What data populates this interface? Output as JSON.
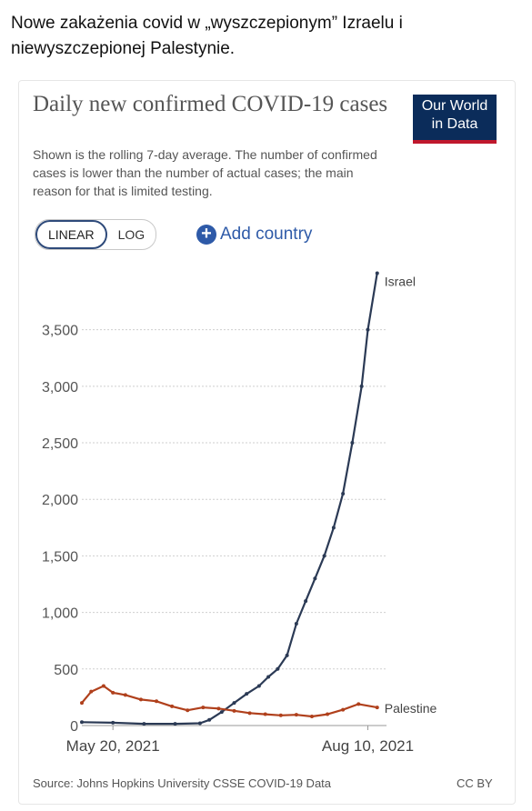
{
  "post": {
    "caption": "Nowe zakażenia covid w „wyszczepionym” Izraelu i niewyszczepionej Palestynie."
  },
  "card": {
    "title": "Daily new confirmed COVID-19 cases",
    "subtitle": "Shown is the rolling 7-day average. The number of confirmed cases is lower than the number of actual cases; the main reason for that is limited testing.",
    "logo_line1": "Our World",
    "logo_line2": "in Data",
    "scale_linear": "LINEAR",
    "scale_log": "LOG",
    "scale_active": "LINEAR",
    "add_country_label": "Add country",
    "source": "Source: Johns Hopkins University CSSE COVID-19 Data",
    "license": "CC BY"
  },
  "colors": {
    "logo_bg": "#0b2c5a",
    "logo_accent": "#c0182d",
    "israel": "#2b3a55",
    "palestine": "#b0401c",
    "link": "#2e5aa8"
  },
  "chart_data": {
    "type": "line",
    "title": "Daily new confirmed COVID-19 cases",
    "xlabel": "",
    "ylabel": "",
    "x_ticks": [
      "May 20, 2021",
      "Aug 10, 2021"
    ],
    "y_ticks": [
      "0",
      "500",
      "1,000",
      "1,500",
      "2,000",
      "2,500",
      "3,000",
      "3,500"
    ],
    "ylim": [
      0,
      4100
    ],
    "x_range": [
      "2021-05-10",
      "2021-08-16"
    ],
    "grid": "horizontal dotted",
    "series": [
      {
        "name": "Israel",
        "points": [
          [
            "2021-05-10",
            30
          ],
          [
            "2021-05-20",
            25
          ],
          [
            "2021-05-30",
            15
          ],
          [
            "2021-06-09",
            15
          ],
          [
            "2021-06-17",
            20
          ],
          [
            "2021-06-20",
            50
          ],
          [
            "2021-06-24",
            120
          ],
          [
            "2021-06-28",
            200
          ],
          [
            "2021-07-02",
            280
          ],
          [
            "2021-07-06",
            350
          ],
          [
            "2021-07-09",
            430
          ],
          [
            "2021-07-12",
            500
          ],
          [
            "2021-07-15",
            620
          ],
          [
            "2021-07-18",
            900
          ],
          [
            "2021-07-21",
            1100
          ],
          [
            "2021-07-24",
            1300
          ],
          [
            "2021-07-27",
            1500
          ],
          [
            "2021-07-30",
            1750
          ],
          [
            "2021-08-02",
            2050
          ],
          [
            "2021-08-05",
            2500
          ],
          [
            "2021-08-08",
            3000
          ],
          [
            "2021-08-10",
            3500
          ],
          [
            "2021-08-13",
            4000
          ]
        ]
      },
      {
        "name": "Palestine",
        "points": [
          [
            "2021-05-10",
            200
          ],
          [
            "2021-05-13",
            300
          ],
          [
            "2021-05-17",
            350
          ],
          [
            "2021-05-20",
            290
          ],
          [
            "2021-05-24",
            270
          ],
          [
            "2021-05-29",
            230
          ],
          [
            "2021-06-03",
            215
          ],
          [
            "2021-06-08",
            170
          ],
          [
            "2021-06-13",
            135
          ],
          [
            "2021-06-18",
            160
          ],
          [
            "2021-06-23",
            150
          ],
          [
            "2021-06-28",
            130
          ],
          [
            "2021-07-03",
            110
          ],
          [
            "2021-07-08",
            100
          ],
          [
            "2021-07-13",
            90
          ],
          [
            "2021-07-18",
            95
          ],
          [
            "2021-07-23",
            80
          ],
          [
            "2021-07-28",
            100
          ],
          [
            "2021-08-02",
            140
          ],
          [
            "2021-08-07",
            190
          ],
          [
            "2021-08-13",
            160
          ]
        ]
      }
    ]
  }
}
